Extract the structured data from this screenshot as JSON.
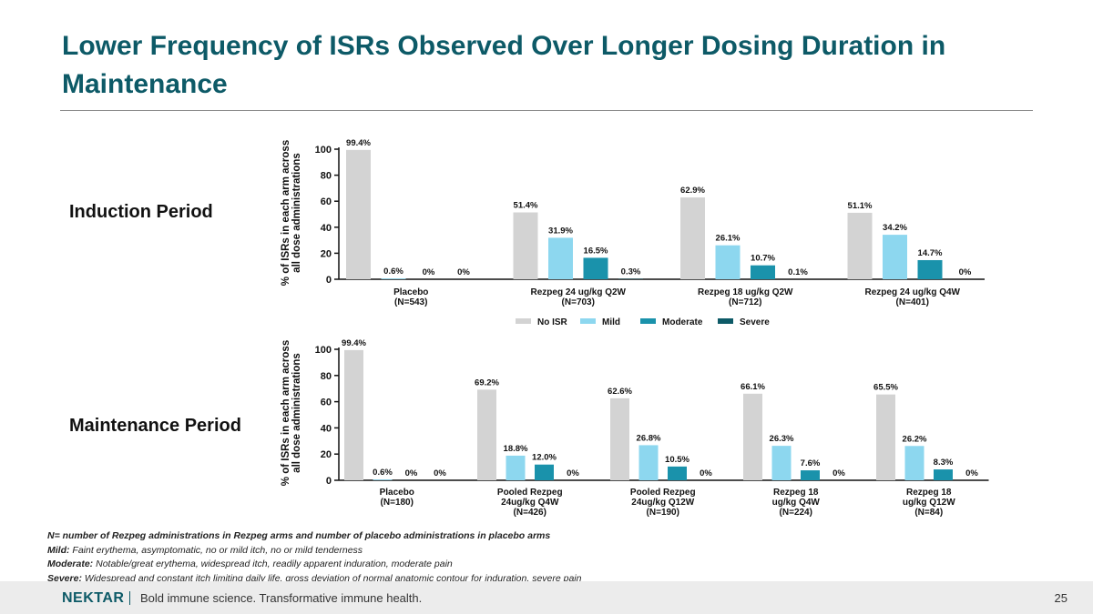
{
  "page": {
    "title": "Lower Frequency of ISRs Observed Over Longer Dosing Duration in Maintenance",
    "induction_label": "Induction Period",
    "maintenance_label": "Maintenance Period",
    "footnotes": [
      {
        "bold": "",
        "text": "N= number of Rezpeg administrations in Rezpeg arms and number of placebo administrations in placebo arms"
      },
      {
        "bold": "Mild:",
        "text": " Faint erythema, asymptomatic, no or mild itch, no or mild tenderness"
      },
      {
        "bold": "Moderate:",
        "text": " Notable/great erythema, widespread itch, readily apparent induration, moderate pain"
      },
      {
        "bold": "Severe:",
        "text": " Widespread and constant itch limiting daily life, gross deviation of normal anatomic contour for induration, severe pain"
      }
    ],
    "footer": {
      "logo": "NEKTAR",
      "tagline": "Bold immune science. Transformative immune health.",
      "page_number": "25"
    },
    "colors": {
      "No ISR": "#d3d3d3",
      "Mild": "#8dd7ef",
      "Moderate": "#1a92ab",
      "Severe": "#0d5a67",
      "title": "#0d5a67"
    }
  },
  "chart_data": [
    {
      "type": "bar",
      "name": "induction",
      "categories": [
        [
          "Placebo",
          "(N=543)"
        ],
        [
          "Rezpeg 24 ug/kg Q2W",
          "(N=703)"
        ],
        [
          "Rezpeg 18 ug/kg Q2W",
          "(N=712)"
        ],
        [
          "Rezpeg 24 ug/kg Q4W",
          "(N=401)"
        ]
      ],
      "series": [
        {
          "name": "No ISR",
          "values": [
            99.4,
            51.4,
            62.9,
            51.1
          ],
          "labels": [
            "99.4%",
            "51.4%",
            "62.9%",
            "51.1%"
          ]
        },
        {
          "name": "Mild",
          "values": [
            0.6,
            31.9,
            26.1,
            34.2
          ],
          "labels": [
            "0.6%",
            "31.9%",
            "26.1%",
            "34.2%"
          ]
        },
        {
          "name": "Moderate",
          "values": [
            0,
            16.5,
            10.7,
            14.7
          ],
          "labels": [
            "0%",
            "16.5%",
            "10.7%",
            "14.7%"
          ]
        },
        {
          "name": "Severe",
          "values": [
            0,
            0.3,
            0.1,
            0
          ],
          "labels": [
            "0%",
            "0.3%",
            "0.1%",
            "0%"
          ]
        }
      ],
      "ylabel": [
        "% of ISRs in each arm across",
        "all dose administrations"
      ],
      "yticks": [
        0,
        20,
        40,
        60,
        80,
        100
      ],
      "ylim": [
        0,
        100
      ],
      "legend": [
        "No ISR",
        "Mild",
        "Moderate",
        "Severe"
      ],
      "legend_position": "bottom-center"
    },
    {
      "type": "bar",
      "name": "maintenance",
      "categories": [
        [
          "Placebo",
          "(N=180)"
        ],
        [
          "Pooled Rezpeg",
          "24ug/kg Q4W",
          "(N=426)"
        ],
        [
          "Pooled Rezpeg",
          "24ug/kg Q12W",
          "(N=190)"
        ],
        [
          "Rezpeg 18",
          "ug/kg Q4W",
          "(N=224)"
        ],
        [
          "Rezpeg 18",
          "ug/kg Q12W",
          "(N=84)"
        ]
      ],
      "series": [
        {
          "name": "No ISR",
          "values": [
            99.4,
            69.2,
            62.6,
            66.1,
            65.5
          ],
          "labels": [
            "99.4%",
            "69.2%",
            "62.6%",
            "66.1%",
            "65.5%"
          ]
        },
        {
          "name": "Mild",
          "values": [
            0.6,
            18.8,
            26.8,
            26.3,
            26.2
          ],
          "labels": [
            "0.6%",
            "18.8%",
            "26.8%",
            "26.3%",
            "26.2%"
          ]
        },
        {
          "name": "Moderate",
          "values": [
            0,
            12.0,
            10.5,
            7.6,
            8.3
          ],
          "labels": [
            "0%",
            "12.0%",
            "10.5%",
            "7.6%",
            "8.3%"
          ]
        },
        {
          "name": "Severe",
          "values": [
            0,
            0,
            0,
            0,
            0
          ],
          "labels": [
            "0%",
            "0%",
            "0%",
            "0%",
            "0%"
          ]
        }
      ],
      "ylabel": [
        "% of ISRs in each arm across",
        "all dose administrations"
      ],
      "yticks": [
        0,
        20,
        40,
        60,
        80,
        100
      ],
      "ylim": [
        0,
        100
      ]
    }
  ]
}
